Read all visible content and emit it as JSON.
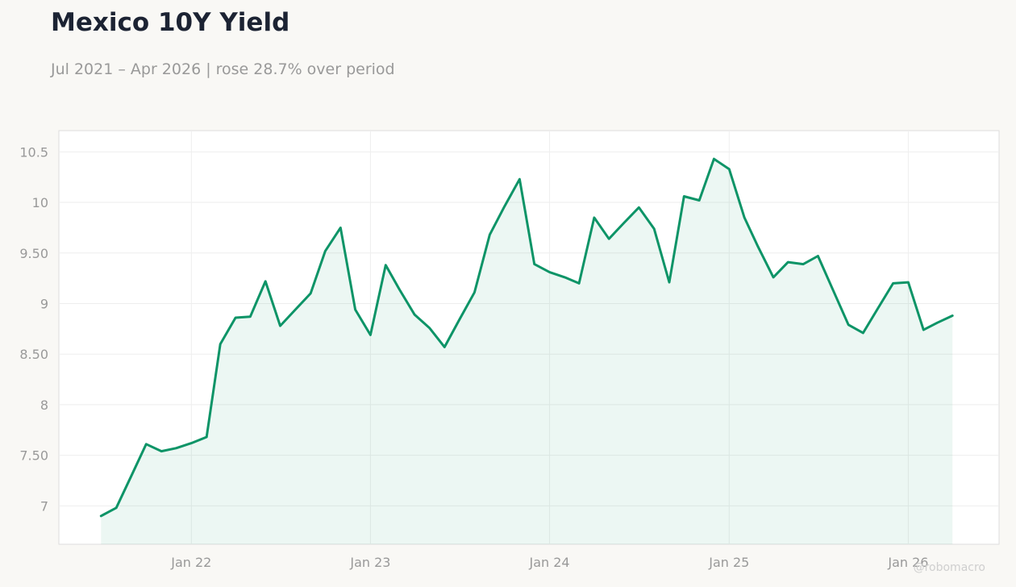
{
  "header": {
    "title": "Mexico 10Y Yield",
    "subtitle": "Jul 2021 – Apr 2026 | rose 28.7% over period"
  },
  "watermark": "@robomacro",
  "colors": {
    "line": "#0d9467",
    "fill": "#0d9467",
    "grid": "#eeeeee",
    "axis_text": "#999999",
    "background": "#f9f8f5",
    "plot_background": "#ffffff"
  },
  "chart_data": {
    "type": "area",
    "title": "Mexico 10Y Yield",
    "xlabel": "",
    "ylabel": "",
    "grid": true,
    "legend": "none",
    "xlim": [
      "2021-04-06",
      "2026-07-05"
    ],
    "ylim": [
      6.62,
      10.71
    ],
    "x_ticks": [
      {
        "date": "2022-01-01",
        "label": "Jan 22"
      },
      {
        "date": "2023-01-01",
        "label": "Jan 23"
      },
      {
        "date": "2024-01-01",
        "label": "Jan 24"
      },
      {
        "date": "2025-01-01",
        "label": "Jan 25"
      },
      {
        "date": "2026-01-01",
        "label": "Jan 26"
      }
    ],
    "y_ticks": [
      {
        "value": 7,
        "label": "7"
      },
      {
        "value": 7.5,
        "label": "7.50"
      },
      {
        "value": 8,
        "label": "8"
      },
      {
        "value": 8.5,
        "label": "8.50"
      },
      {
        "value": 9,
        "label": "9"
      },
      {
        "value": 9.5,
        "label": "9.50"
      },
      {
        "value": 10,
        "label": "10"
      },
      {
        "value": 10.5,
        "label": "10.5"
      }
    ],
    "series": [
      {
        "x": [
          "2021-07-01",
          "2021-08-01",
          "2021-09-01",
          "2021-10-01",
          "2021-11-01",
          "2021-12-01",
          "2022-01-01",
          "2022-02-01",
          "2022-03-01",
          "2022-04-01",
          "2022-05-01",
          "2022-06-01",
          "2022-07-01",
          "2022-08-01",
          "2022-09-01",
          "2022-10-01",
          "2022-11-01",
          "2022-12-01",
          "2023-01-01",
          "2023-02-01",
          "2023-03-01",
          "2023-04-01",
          "2023-05-01",
          "2023-06-01",
          "2023-07-01",
          "2023-08-01",
          "2023-09-01",
          "2023-10-01",
          "2023-11-01",
          "2023-12-01",
          "2024-01-01",
          "2024-02-01",
          "2024-03-01",
          "2024-04-01",
          "2024-05-01",
          "2024-06-01",
          "2024-07-01",
          "2024-08-01",
          "2024-09-01",
          "2024-10-01",
          "2024-11-01",
          "2024-12-01",
          "2025-01-01",
          "2025-02-01",
          "2025-03-01",
          "2025-04-01",
          "2025-05-01",
          "2025-06-01",
          "2025-07-01",
          "2025-08-01",
          "2025-09-01",
          "2025-10-01",
          "2025-11-01",
          "2025-12-01",
          "2026-01-01",
          "2026-02-01",
          "2026-03-01",
          "2026-04-01"
        ],
        "values": [
          6.9,
          6.98,
          7.3,
          7.61,
          7.54,
          7.57,
          7.62,
          7.68,
          8.6,
          8.86,
          8.87,
          9.22,
          8.78,
          8.94,
          9.1,
          9.52,
          9.75,
          8.94,
          8.69,
          9.38,
          9.14,
          8.89,
          8.76,
          8.57,
          8.84,
          9.11,
          9.68,
          9.96,
          10.23,
          9.39,
          9.31,
          9.26,
          9.2,
          9.85,
          9.64,
          9.8,
          9.95,
          9.74,
          9.21,
          10.06,
          10.02,
          10.43,
          10.33,
          9.85,
          9.56,
          9.26,
          9.41,
          9.39,
          9.47,
          9.13,
          8.79,
          8.71,
          8.96,
          9.2,
          9.21,
          8.74,
          8.81,
          8.88
        ]
      }
    ]
  }
}
